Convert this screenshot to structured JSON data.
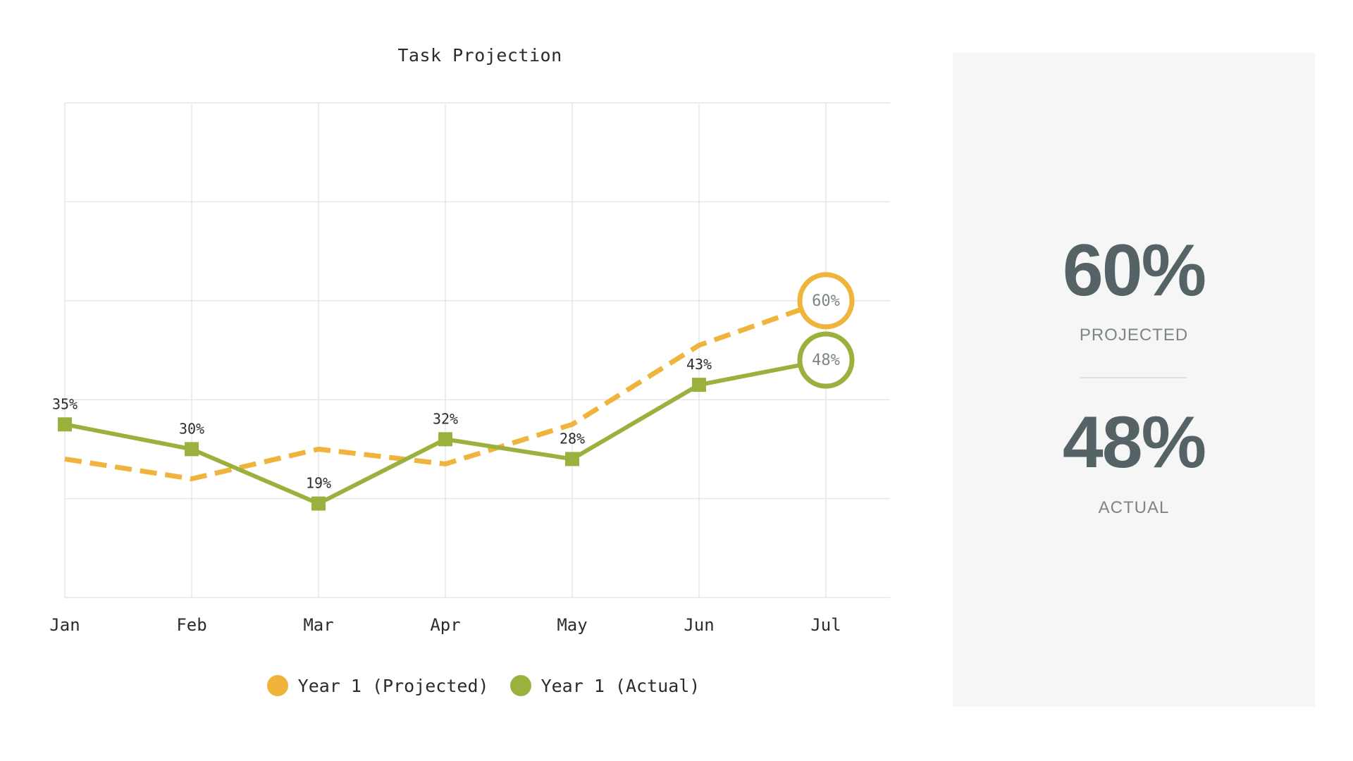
{
  "colors": {
    "projected": "#f0b33b",
    "actual": "#9bb13e",
    "grid": "#e6e6e6",
    "panel_bg": "#f6f6f6",
    "stat_text": "#556266",
    "end_label_text": "#7c8587"
  },
  "chart_data": {
    "type": "line",
    "title": "Task Projection",
    "xlabel": "",
    "ylabel": "",
    "categories": [
      "Jan",
      "Feb",
      "Mar",
      "Apr",
      "May",
      "Jun",
      "Jul"
    ],
    "ylim": [
      0,
      100
    ],
    "grid": true,
    "legend_position": "bottom",
    "series": [
      {
        "name": "Year 1 (Projected)",
        "style": "dashed",
        "color": "#f0b33b",
        "values": [
          28,
          24,
          30,
          27,
          35,
          51,
          60
        ],
        "labels": [
          "",
          "",
          "",
          "",
          "",
          "",
          "60%"
        ]
      },
      {
        "name": "Year 1 (Actual)",
        "style": "solid",
        "color": "#9bb13e",
        "values": [
          35,
          30,
          19,
          32,
          28,
          43,
          48
        ],
        "labels": [
          "35%",
          "30%",
          "19%",
          "32%",
          "28%",
          "43%",
          "48%"
        ]
      }
    ]
  },
  "legend": {
    "projected_label": "Year 1 (Projected)",
    "actual_label": "Year 1 (Actual)"
  },
  "summary": {
    "projected_value": "60%",
    "projected_label": "PROJECTED",
    "actual_value": "48%",
    "actual_label": "ACTUAL"
  }
}
